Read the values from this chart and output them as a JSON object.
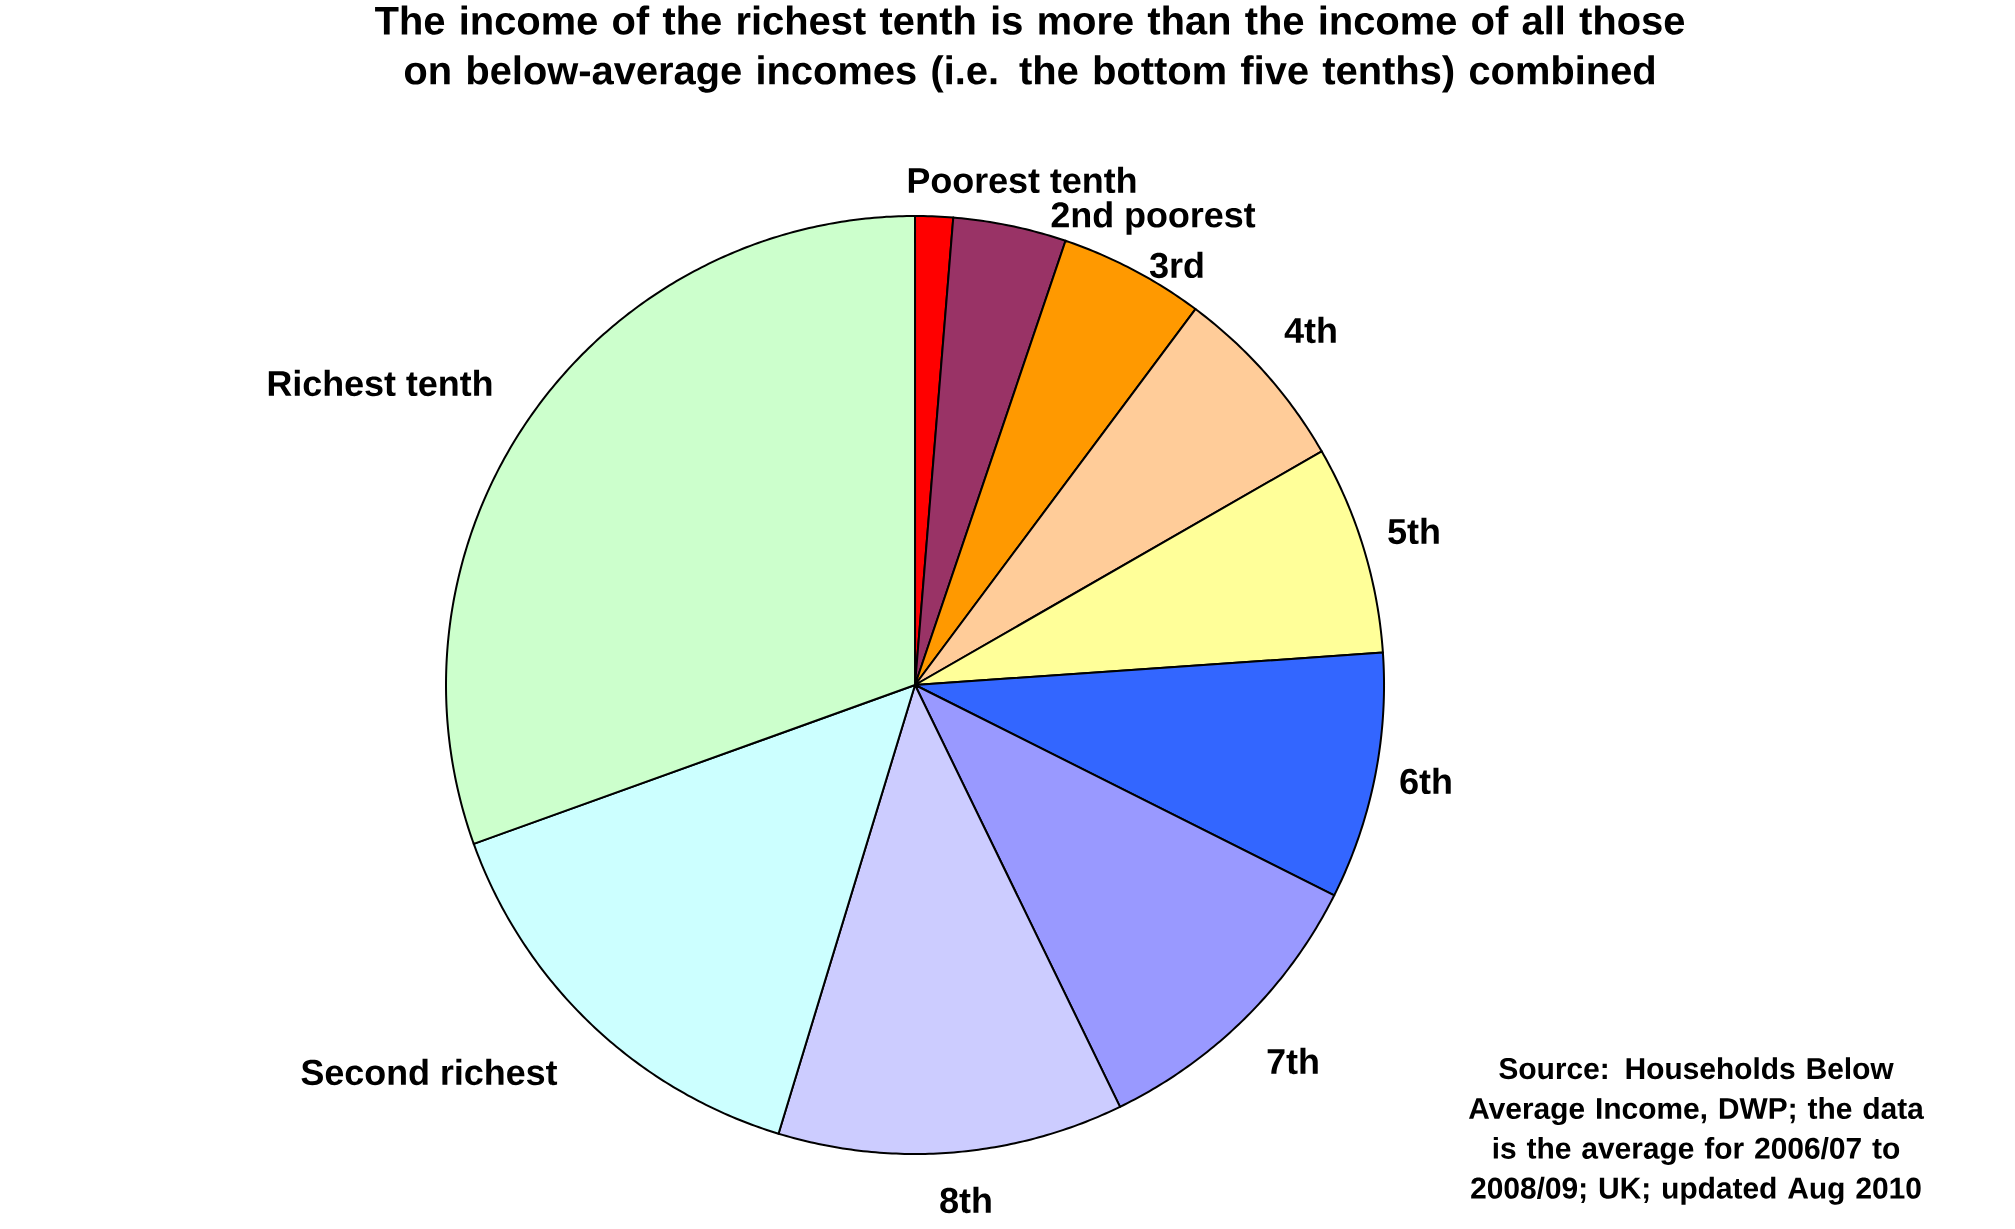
{
  "chart_data": {
    "type": "pie",
    "title": "The income of the richest tenth is more than the income of all those on below-average incomes (i.e. the bottom five tenths) combined",
    "categories": [
      "Poorest tenth",
      "2nd poorest",
      "3rd",
      "4th",
      "5th",
      "6th",
      "7th",
      "8th",
      "Second richest",
      "Richest tenth"
    ],
    "values": [
      1.3,
      3.9,
      5.0,
      6.5,
      7.2,
      8.5,
      10.4,
      11.9,
      14.8,
      30.5
    ],
    "colors": [
      "#ff0000",
      "#993366",
      "#ff9900",
      "#ffcc99",
      "#ffff99",
      "#3366ff",
      "#9999ff",
      "#ccccff",
      "#ccffff",
      "#ccffcc"
    ],
    "annotations": [
      "Source: Households Below Average Income, DWP; the data is the average for 2006/07 to 2008/09; UK; updated Aug 2010"
    ]
  }
}
